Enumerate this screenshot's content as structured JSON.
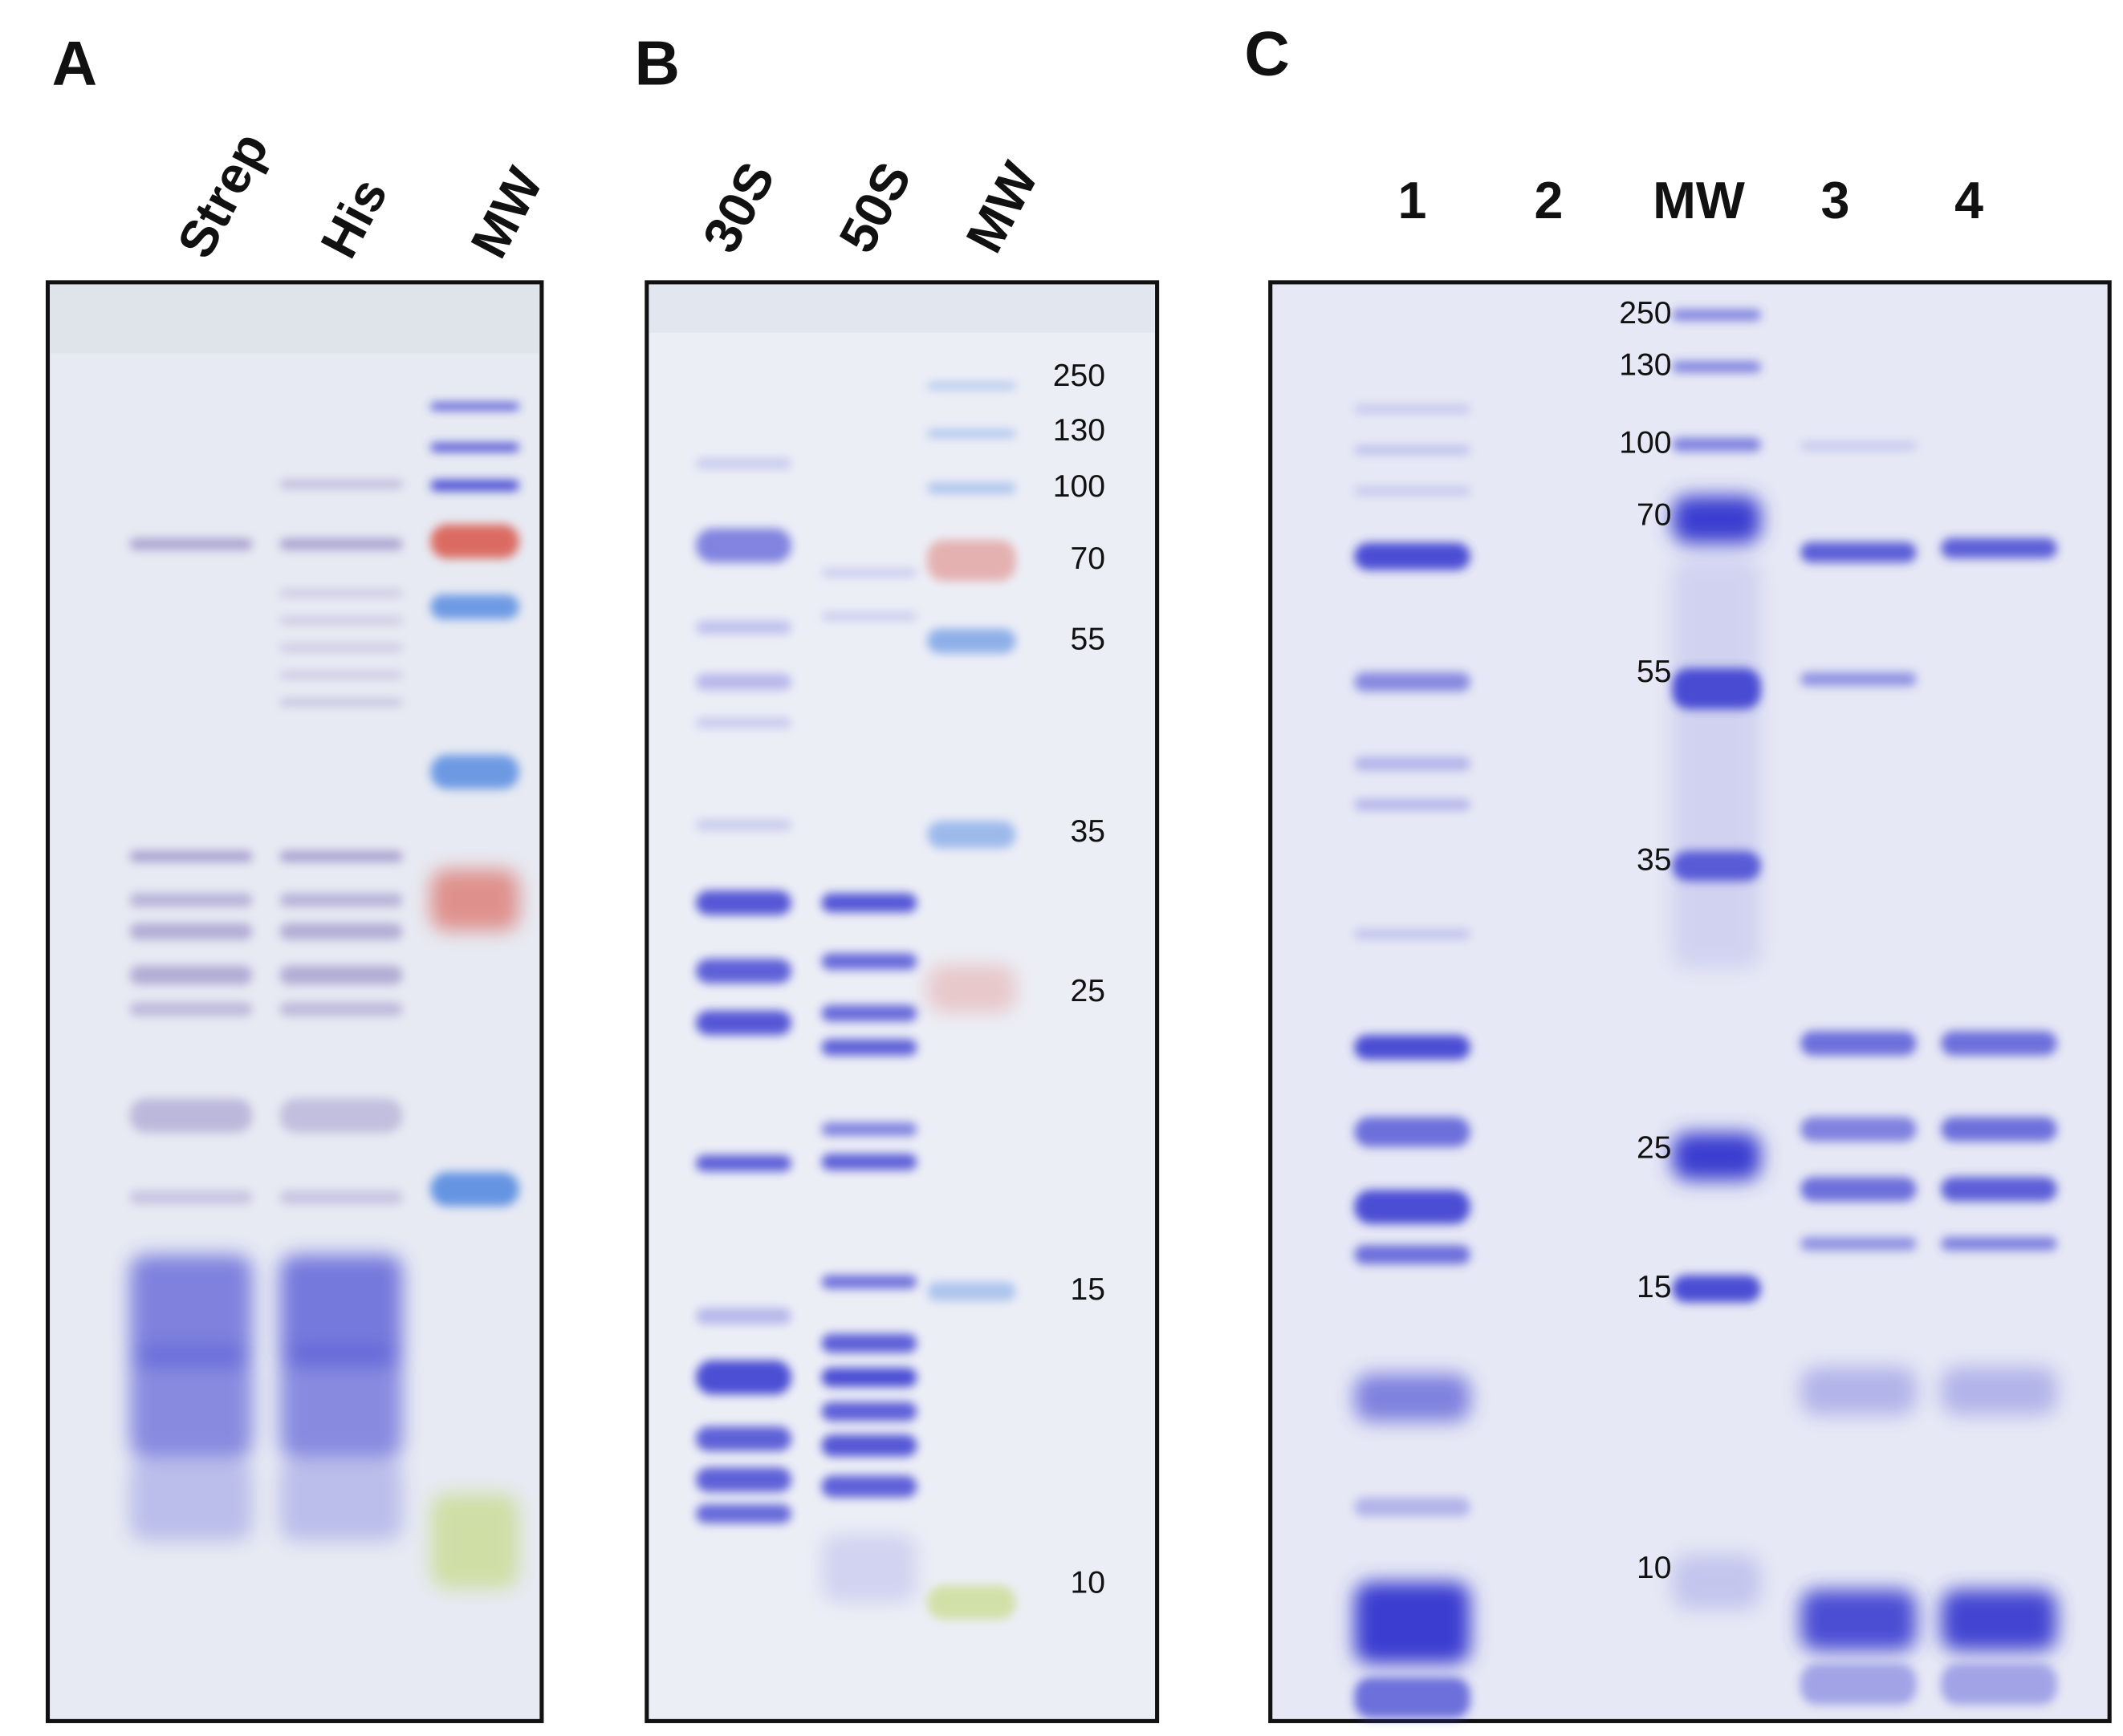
{
  "panels": [
    {
      "label": "A",
      "lanes": [
        "Strep",
        "His",
        "MW"
      ]
    },
    {
      "label": "B",
      "lanes": [
        "30S",
        "50S",
        "MW"
      ],
      "markers": [
        "250",
        "130",
        "100",
        "70",
        "55",
        "35",
        "25",
        "15",
        "10"
      ]
    },
    {
      "label": "C",
      "lanes": [
        "1",
        "2",
        "MW",
        "3",
        "4"
      ],
      "markers": [
        "250",
        "130",
        "100",
        "70",
        "55",
        "35",
        "25",
        "15",
        "10"
      ]
    }
  ]
}
